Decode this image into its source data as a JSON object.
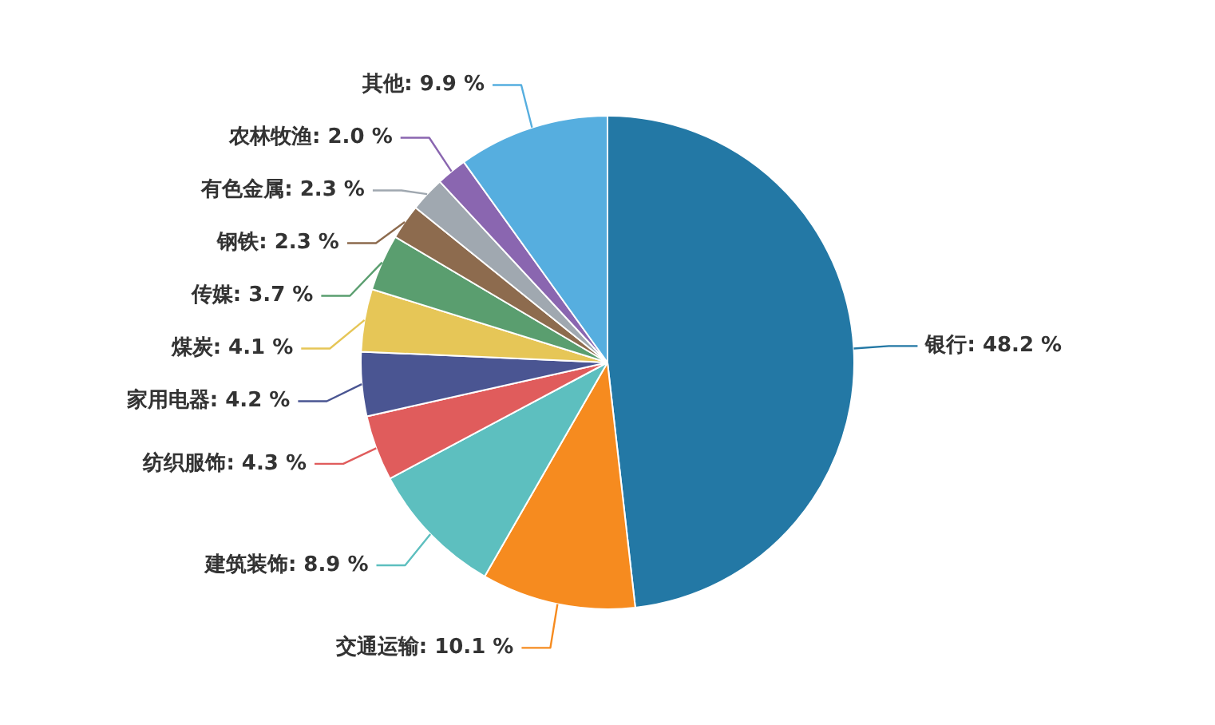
{
  "chart_data": {
    "type": "pie",
    "categories": [
      "银行",
      "交通运输",
      "建筑装饰",
      "纺织服饰",
      "家用电器",
      "煤炭",
      "传媒",
      "钢铁",
      "有色金属",
      "农林牧渔",
      "其他"
    ],
    "values": [
      48.2,
      10.1,
      8.9,
      4.3,
      4.2,
      4.1,
      3.7,
      2.3,
      2.3,
      2.0,
      9.9
    ],
    "value_labels": [
      "48.2 %",
      "10.1 %",
      "8.9 %",
      "4.3 %",
      "4.2 %",
      "4.1 %",
      "3.7 %",
      "2.3 %",
      "2.3 %",
      "2.0 %",
      "9.9 %"
    ],
    "colors": [
      "#2378a5",
      "#f68b1f",
      "#5dbfbf",
      "#e05c5c",
      "#4a5592",
      "#e6c657",
      "#5a9e6f",
      "#8d6b4e",
      "#a0a8b0",
      "#8a66b0",
      "#56aedf"
    ],
    "legend": false
  }
}
